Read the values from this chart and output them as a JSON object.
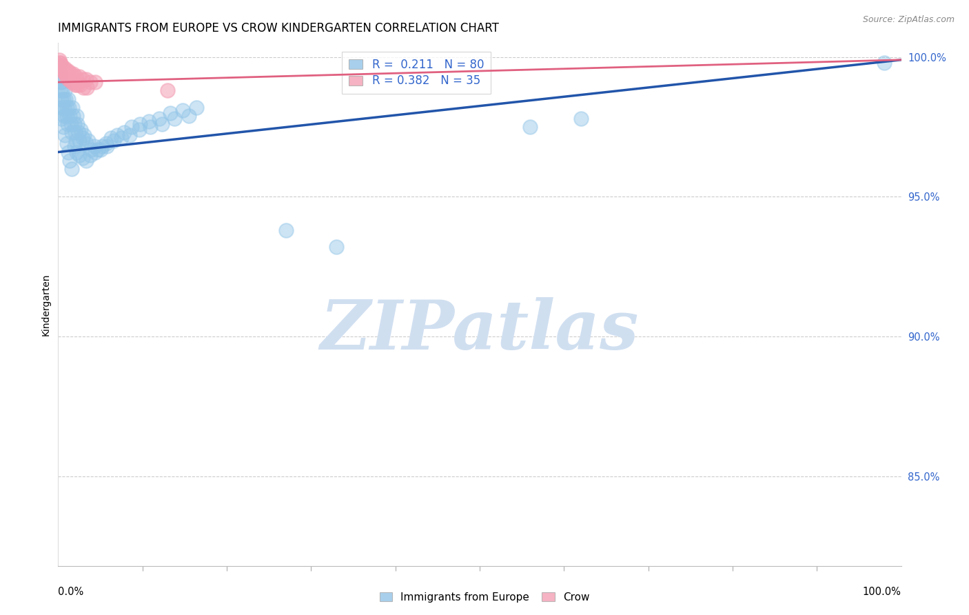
{
  "title": "IMMIGRANTS FROM EUROPE VS CROW KINDERGARTEN CORRELATION CHART",
  "source": "Source: ZipAtlas.com",
  "ylabel": "Kindergarten",
  "legend_blue_label": "Immigrants from Europe",
  "legend_pink_label": "Crow",
  "blue_R": 0.211,
  "blue_N": 80,
  "pink_R": 0.382,
  "pink_N": 35,
  "blue_color": "#92C5E8",
  "pink_color": "#F4A0B5",
  "blue_line_color": "#2255AA",
  "pink_line_color": "#E06080",
  "watermark_text": "ZIPatlas",
  "watermark_color": "#D0DFF0",
  "xlim": [
    0.0,
    1.0
  ],
  "ylim": [
    0.818,
    1.005
  ],
  "yticks": [
    0.85,
    0.9,
    0.95,
    1.0
  ],
  "ytick_labels": [
    "85.0%",
    "90.0%",
    "95.0%",
    "100.0%"
  ],
  "title_fontsize": 12,
  "background_color": "#FFFFFF",
  "blue_points_x": [
    0.001,
    0.002,
    0.003,
    0.003,
    0.004,
    0.004,
    0.005,
    0.005,
    0.006,
    0.007,
    0.007,
    0.008,
    0.009,
    0.01,
    0.01,
    0.011,
    0.012,
    0.013,
    0.014,
    0.015,
    0.016,
    0.017,
    0.018,
    0.019,
    0.02,
    0.021,
    0.022,
    0.023,
    0.024,
    0.025,
    0.027,
    0.029,
    0.031,
    0.033,
    0.036,
    0.039,
    0.043,
    0.047,
    0.052,
    0.057,
    0.063,
    0.07,
    0.078,
    0.087,
    0.097,
    0.108,
    0.12,
    0.133,
    0.148,
    0.164,
    0.002,
    0.004,
    0.006,
    0.008,
    0.01,
    0.012,
    0.014,
    0.016,
    0.019,
    0.022,
    0.025,
    0.029,
    0.033,
    0.038,
    0.044,
    0.05,
    0.058,
    0.066,
    0.075,
    0.085,
    0.096,
    0.109,
    0.123,
    0.138,
    0.155,
    0.56,
    0.62,
    0.27,
    0.33,
    0.98
  ],
  "blue_points_y": [
    0.997,
    0.994,
    0.991,
    0.988,
    0.985,
    0.982,
    0.991,
    0.988,
    0.985,
    0.982,
    0.979,
    0.988,
    0.985,
    0.982,
    0.979,
    0.976,
    0.985,
    0.982,
    0.979,
    0.976,
    0.973,
    0.982,
    0.979,
    0.976,
    0.973,
    0.97,
    0.979,
    0.976,
    0.973,
    0.97,
    0.974,
    0.971,
    0.972,
    0.969,
    0.97,
    0.967,
    0.968,
    0.967,
    0.968,
    0.969,
    0.971,
    0.972,
    0.973,
    0.975,
    0.976,
    0.977,
    0.978,
    0.98,
    0.981,
    0.982,
    0.98,
    0.978,
    0.975,
    0.972,
    0.969,
    0.966,
    0.963,
    0.96,
    0.968,
    0.966,
    0.965,
    0.964,
    0.963,
    0.965,
    0.966,
    0.967,
    0.968,
    0.97,
    0.971,
    0.972,
    0.974,
    0.975,
    0.976,
    0.978,
    0.979,
    0.975,
    0.978,
    0.938,
    0.932,
    0.998
  ],
  "pink_points_x": [
    0.001,
    0.002,
    0.003,
    0.004,
    0.005,
    0.006,
    0.007,
    0.008,
    0.009,
    0.01,
    0.011,
    0.012,
    0.014,
    0.016,
    0.018,
    0.02,
    0.023,
    0.026,
    0.03,
    0.034,
    0.002,
    0.004,
    0.006,
    0.008,
    0.01,
    0.012,
    0.015,
    0.018,
    0.021,
    0.025,
    0.029,
    0.033,
    0.038,
    0.044,
    0.13
  ],
  "pink_points_y": [
    0.999,
    0.998,
    0.997,
    0.997,
    0.996,
    0.995,
    0.995,
    0.994,
    0.994,
    0.993,
    0.993,
    0.992,
    0.992,
    0.991,
    0.991,
    0.99,
    0.99,
    0.99,
    0.989,
    0.989,
    0.998,
    0.997,
    0.996,
    0.996,
    0.995,
    0.995,
    0.994,
    0.994,
    0.993,
    0.993,
    0.992,
    0.992,
    0.991,
    0.991,
    0.988
  ],
  "blue_trend_x": [
    0.0,
    1.0
  ],
  "blue_trend_y_start": 0.966,
  "blue_trend_y_end": 0.999,
  "pink_trend_x": [
    0.0,
    1.0
  ],
  "pink_trend_y_start": 0.991,
  "pink_trend_y_end": 0.999
}
